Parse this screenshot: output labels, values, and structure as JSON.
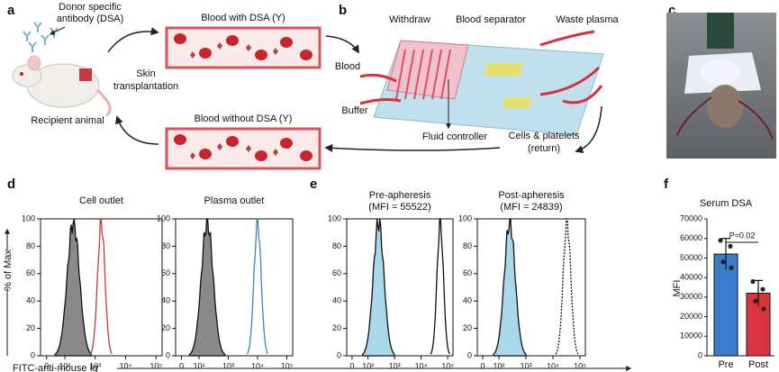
{
  "panel_letters": [
    "a",
    "b",
    "c",
    "d",
    "e",
    "f"
  ],
  "panel_a": {
    "donor_line1": "Donor specific",
    "donor_line2": "antibody (DSA)",
    "blood_with": "Blood with DSA (Y)",
    "blood_without": "Blood without DSA (Y)",
    "skin_line1": "Skin",
    "skin_line2": "transplantation",
    "recipient": "Recipient animal"
  },
  "panel_b": {
    "withdraw": "Withdraw",
    "separator": "Blood separator",
    "waste": "Waste plasma",
    "blood": "Blood",
    "buffer": "Buffer",
    "controller": "Fluid controller",
    "cells_line1": "Cells & platelets",
    "cells_line2": "(return)"
  },
  "histogram_axes": {
    "ylabel": "% of Max",
    "xlabel": "FITC-anti-mouse Ig",
    "yticks": [
      0,
      20,
      40,
      60,
      80,
      100
    ],
    "xticks": [
      0,
      {
        "value": 100,
        "label": "10²"
      },
      {
        "value": 1000,
        "label": "10³"
      },
      {
        "value": 10000,
        "label": "10⁴"
      },
      {
        "value": 100000,
        "label": "10⁵"
      }
    ]
  },
  "histograms": [
    {
      "title": "Cell outlet"
    },
    {
      "title": "Plasma outlet"
    },
    {
      "title": "Pre-apheresis",
      "subtitle": "(MFI = 55522)"
    },
    {
      "title": "Post-apheresis",
      "subtitle": "(MFI = 24839)"
    }
  ],
  "bar_chart": {
    "type": "bar",
    "title": "Serum DSA",
    "ylabel": "MFI",
    "categories": [
      "Pre",
      "Post"
    ],
    "colors": [
      "#3b7ccc",
      "#d9343f"
    ],
    "values": [
      52000,
      32000
    ],
    "errors": [
      8000,
      6500
    ],
    "points": [
      [
        59000,
        56000,
        48000,
        45000
      ],
      [
        38000,
        34000,
        28000,
        24000
      ]
    ],
    "ylim": [
      0,
      70000
    ],
    "yticks": [
      0,
      10000,
      20000,
      30000,
      40000,
      50000,
      60000,
      70000
    ],
    "annotation": "P=0.02"
  }
}
